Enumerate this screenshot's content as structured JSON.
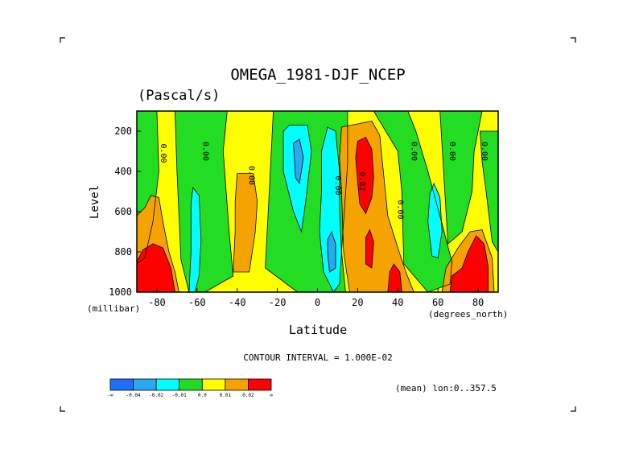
{
  "chart_data": {
    "type": "contour",
    "title": "OMEGA_1981-DJF_NCEP",
    "units": "(Pascal/s)",
    "xlabel": "Latitude",
    "ylabel": "Level",
    "x_unit_label": "(degrees_north)",
    "y_unit_label": "(millibar)",
    "xlim": [
      -90,
      90
    ],
    "ylim": [
      1000,
      100
    ],
    "x_ticks": [
      -80,
      -60,
      -40,
      -20,
      0,
      20,
      40,
      60,
      80
    ],
    "y_ticks": [
      200,
      400,
      600,
      800,
      1000
    ],
    "contour_interval_text": "CONTOUR INTERVAL = 1.000E-02",
    "mean_text": "(mean) lon:0..357.5",
    "colorbar": {
      "colors": [
        "#1f6fff",
        "#2aa8f0",
        "#00ffff",
        "#22dd22",
        "#ffff00",
        "#f5a300",
        "#ff0000"
      ],
      "labels": [
        "-∞",
        "-0.04",
        "-0.02",
        "-0.01",
        "0.0",
        "0.01",
        "0.02",
        "∞"
      ]
    },
    "contour_labels": [
      {
        "text": "0.00",
        "lat": -78,
        "p": 310
      },
      {
        "text": "0.00",
        "lat": -57,
        "p": 300
      },
      {
        "text": "0.00",
        "lat": -34,
        "p": 420
      },
      {
        "text": "0.00",
        "lat": 9,
        "p": 470
      },
      {
        "text": "0.02",
        "lat": 21,
        "p": 450
      },
      {
        "text": "0.00",
        "lat": 40,
        "p": 590
      },
      {
        "text": "0.00",
        "lat": 47,
        "p": 300
      },
      {
        "text": "0.00",
        "lat": 66,
        "p": 300
      },
      {
        "text": "0.00",
        "lat": 82,
        "p": 300
      }
    ],
    "regions": [
      {
        "color": "#ffff00",
        "poly": [
          [
            -90,
            100
          ],
          [
            90,
            100
          ],
          [
            90,
            1000
          ],
          [
            -90,
            1000
          ]
        ]
      },
      {
        "color": "#22dd22",
        "poly": [
          [
            -90,
            100
          ],
          [
            -80,
            100
          ],
          [
            -79,
            400
          ],
          [
            -82,
            650
          ],
          [
            -86,
            830
          ],
          [
            -90,
            860
          ]
        ]
      },
      {
        "color": "#22dd22",
        "poly": [
          [
            -71,
            100
          ],
          [
            -45,
            100
          ],
          [
            -47,
            300
          ],
          [
            -44,
            700
          ],
          [
            -42,
            920
          ],
          [
            -56,
            1000
          ],
          [
            -64,
            1000
          ],
          [
            -68,
            840
          ],
          [
            -70,
            400
          ]
        ]
      },
      {
        "color": "#22dd22",
        "poly": [
          [
            -22,
            100
          ],
          [
            15,
            100
          ],
          [
            15,
            360
          ],
          [
            12,
            800
          ],
          [
            14,
            1000
          ],
          [
            -10,
            1000
          ],
          [
            -26,
            880
          ],
          [
            -24,
            500
          ]
        ]
      },
      {
        "color": "#22dd22",
        "poly": [
          [
            28,
            100
          ],
          [
            45,
            100
          ],
          [
            49,
            200
          ],
          [
            55,
            400
          ],
          [
            62,
            660
          ],
          [
            67,
            850
          ],
          [
            66,
            960
          ],
          [
            55,
            1000
          ],
          [
            43,
            860
          ],
          [
            42,
            500
          ],
          [
            40,
            300
          ]
        ]
      },
      {
        "color": "#22dd22",
        "poly": [
          [
            61,
            100
          ],
          [
            82,
            100
          ],
          [
            78,
            300
          ],
          [
            77,
            500
          ],
          [
            72,
            700
          ],
          [
            65,
            760
          ]
        ]
      },
      {
        "color": "#22dd22",
        "poly": [
          [
            81,
            200
          ],
          [
            90,
            200
          ],
          [
            90,
            800
          ],
          [
            87,
            750
          ],
          [
            84,
            500
          ],
          [
            82,
            350
          ]
        ]
      },
      {
        "color": "#f5a300",
        "poly": [
          [
            -90,
            620
          ],
          [
            -86,
            580
          ],
          [
            -83,
            520
          ],
          [
            -79,
            530
          ],
          [
            -77,
            650
          ],
          [
            -74,
            800
          ],
          [
            -71,
            900
          ],
          [
            -69,
            1000
          ],
          [
            -90,
            1000
          ]
        ]
      },
      {
        "color": "#f5a300",
        "poly": [
          [
            -40,
            410
          ],
          [
            -32,
            410
          ],
          [
            -30,
            550
          ],
          [
            -31,
            700
          ],
          [
            -34,
            900
          ],
          [
            -42,
            900
          ],
          [
            -41,
            700
          ],
          [
            -41,
            550
          ]
        ]
      },
      {
        "color": "#f5a300",
        "poly": [
          [
            12,
            180
          ],
          [
            27,
            150
          ],
          [
            31,
            220
          ],
          [
            33,
            420
          ],
          [
            35,
            620
          ],
          [
            40,
            780
          ],
          [
            44,
            900
          ],
          [
            48,
            1000
          ],
          [
            16,
            1000
          ],
          [
            13,
            800
          ],
          [
            12,
            500
          ],
          [
            11,
            330
          ]
        ]
      },
      {
        "color": "#f5a300",
        "poly": [
          [
            62,
            1000
          ],
          [
            64,
            880
          ],
          [
            70,
            780
          ],
          [
            76,
            700
          ],
          [
            82,
            690
          ],
          [
            87,
            830
          ],
          [
            88,
            1000
          ]
        ]
      },
      {
        "color": "#ff0000",
        "poly": [
          [
            -90,
            1000
          ],
          [
            -90,
            850
          ],
          [
            -87,
            790
          ],
          [
            -82,
            760
          ],
          [
            -77,
            780
          ],
          [
            -73,
            880
          ],
          [
            -71,
            1000
          ]
        ]
      },
      {
        "color": "#ff0000",
        "poly": [
          [
            19,
            330
          ],
          [
            20,
            250
          ],
          [
            24,
            230
          ],
          [
            27,
            290
          ],
          [
            28,
            430
          ],
          [
            27,
            530
          ],
          [
            24,
            610
          ],
          [
            21,
            560
          ],
          [
            20,
            450
          ]
        ]
      },
      {
        "color": "#ff0000",
        "poly": [
          [
            24,
            730
          ],
          [
            26,
            690
          ],
          [
            28,
            750
          ],
          [
            27,
            880
          ],
          [
            24,
            860
          ]
        ]
      },
      {
        "color": "#ff0000",
        "poly": [
          [
            35,
            1000
          ],
          [
            36,
            900
          ],
          [
            38,
            860
          ],
          [
            41,
            900
          ],
          [
            42,
            1000
          ]
        ]
      },
      {
        "color": "#ff0000",
        "poly": [
          [
            66,
            1000
          ],
          [
            67,
            920
          ],
          [
            72,
            880
          ],
          [
            75,
            800
          ],
          [
            79,
            720
          ],
          [
            83,
            760
          ],
          [
            85,
            870
          ],
          [
            85,
            1000
          ]
        ]
      },
      {
        "color": "#00ffff",
        "poly": [
          [
            -64,
            1000
          ],
          [
            -63,
            800
          ],
          [
            -63,
            560
          ],
          [
            -62,
            480
          ],
          [
            -59,
            520
          ],
          [
            -58,
            740
          ],
          [
            -59,
            920
          ],
          [
            -61,
            1000
          ]
        ]
      },
      {
        "color": "#00ffff",
        "poly": [
          [
            -17,
            200
          ],
          [
            -14,
            170
          ],
          [
            -5,
            170
          ],
          [
            -3,
            300
          ],
          [
            -6,
            560
          ],
          [
            -8,
            700
          ],
          [
            -12,
            600
          ],
          [
            -17,
            400
          ]
        ]
      },
      {
        "color": "#00ffff",
        "poly": [
          [
            2,
            300
          ],
          [
            5,
            180
          ],
          [
            9,
            200
          ],
          [
            11,
            400
          ],
          [
            11,
            600
          ],
          [
            12,
            800
          ],
          [
            11,
            960
          ],
          [
            8,
            1000
          ],
          [
            3,
            900
          ],
          [
            1,
            700
          ],
          [
            2,
            500
          ]
        ]
      },
      {
        "color": "#00ffff",
        "poly": [
          [
            55,
            650
          ],
          [
            56,
            510
          ],
          [
            58,
            460
          ],
          [
            61,
            530
          ],
          [
            62,
            700
          ],
          [
            60,
            830
          ],
          [
            57,
            820
          ]
        ]
      },
      {
        "color": "#2aa8f0",
        "poly": [
          [
            -12,
            260
          ],
          [
            -9,
            240
          ],
          [
            -7,
            330
          ],
          [
            -9,
            460
          ],
          [
            -11,
            430
          ]
        ]
      },
      {
        "color": "#2aa8f0",
        "poly": [
          [
            5,
            740
          ],
          [
            7,
            700
          ],
          [
            9,
            760
          ],
          [
            9,
            880
          ],
          [
            6,
            900
          ],
          [
            5,
            800
          ]
        ]
      }
    ]
  }
}
